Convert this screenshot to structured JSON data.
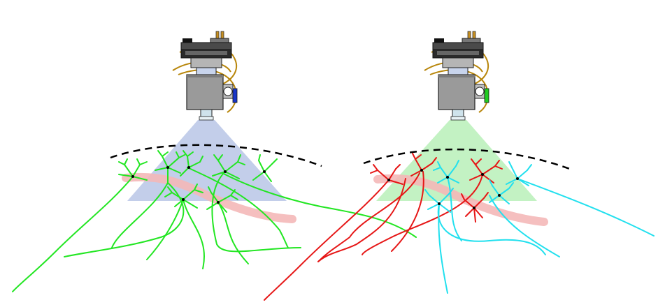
{
  "figure": {
    "panels": [
      {
        "id": "left",
        "beam_color": "#b8c6e6",
        "led_color": "#1a37c8",
        "neuron_colors": [
          "#22e622"
        ],
        "neuron_count": 7
      },
      {
        "id": "right",
        "beam_color": "#b9f0b9",
        "led_color": "#22cc22",
        "neuron_colors": [
          "#e61616",
          "#22e0ee"
        ],
        "neuron_count": 7
      }
    ],
    "colors": {
      "vessel": "#f4b8b8",
      "brain_surface_line": "#000000",
      "scope_body": "#9a9a9a",
      "scope_dark": "#3a3a3a",
      "cable": "#b8860b"
    }
  }
}
